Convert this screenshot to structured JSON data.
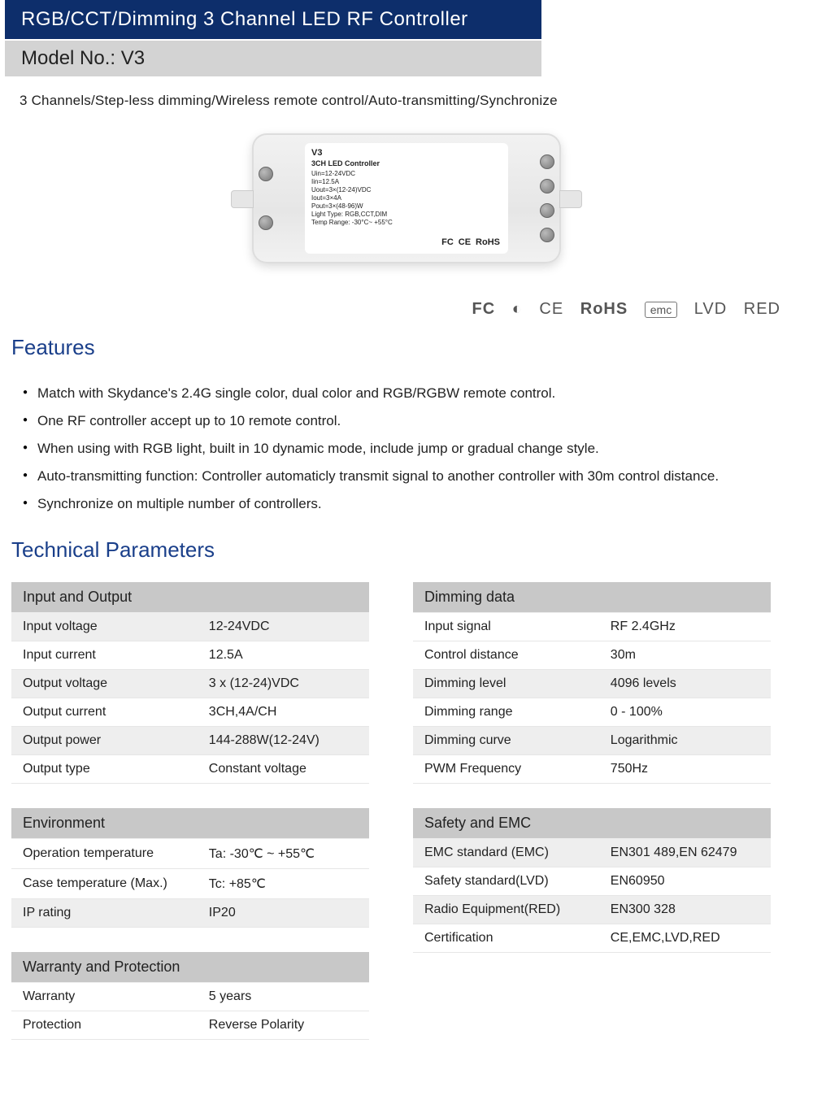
{
  "header": {
    "title": "RGB/CCT/Dimming 3 Channel LED RF Controller",
    "model": "Model No.: V3",
    "tagline": "3 Channels/Step-less dimming/Wireless remote control/Auto-transmitting/Synchronize"
  },
  "product_label": {
    "model": "V3",
    "subtitle": "3CH LED Controller",
    "l1": "Uin=12-24VDC",
    "l2": "Iin=12.5A",
    "l3": "Uout=3×(12-24)VDC",
    "l4": "Iout=3×4A",
    "l5": "Pout=3×(48-96)W",
    "l6": "Light Type: RGB,CCT,DIM",
    "l7": "Temp Range: -30°C~ +55°C",
    "rohs": "RoHS"
  },
  "certifications": {
    "c1": "FC",
    "c2": "◐",
    "c3": "CE",
    "c4": "RoHS",
    "c5": "emc",
    "c6": "LVD",
    "c7": "RED"
  },
  "features_heading": "Features",
  "features": [
    "Match with Skydance's 2.4G single color, dual color and RGB/RGBW remote control.",
    "One RF controller accept up to 10 remote control.",
    "When using with RGB light, built in 10 dynamic mode, include jump or gradual change style.",
    "Auto-transmitting function: Controller automaticly transmit signal to another controller with 30m control distance.",
    "Synchronize on multiple number of controllers."
  ],
  "tech_heading": "Technical Parameters",
  "t_io": {
    "title": "Input and Output",
    "rows": [
      [
        "Input voltage",
        "12-24VDC"
      ],
      [
        "Input current",
        "12.5A"
      ],
      [
        "Output voltage",
        "3 x (12-24)VDC"
      ],
      [
        "Output current",
        "3CH,4A/CH"
      ],
      [
        "Output power",
        "144-288W(12-24V)"
      ],
      [
        "Output type",
        "Constant voltage"
      ]
    ]
  },
  "t_dim": {
    "title": "Dimming data",
    "rows": [
      [
        "Input signal",
        "RF 2.4GHz"
      ],
      [
        "Control distance",
        "30m"
      ],
      [
        "Dimming level",
        "4096 levels"
      ],
      [
        "Dimming range",
        "0 - 100%"
      ],
      [
        "Dimming curve",
        "Logarithmic"
      ],
      [
        "PWM Frequency",
        "750Hz"
      ]
    ]
  },
  "t_env": {
    "title": "Environment",
    "rows": [
      [
        "Operation temperature",
        "Ta: -30℃ ~ +55℃"
      ],
      [
        "Case temperature (Max.)",
        "Tc: +85℃"
      ],
      [
        "IP rating",
        "IP20"
      ]
    ]
  },
  "t_safe": {
    "title": "Safety and EMC",
    "rows": [
      [
        "EMC standard (EMC)",
        "EN301 489,EN 62479"
      ],
      [
        "Safety standard(LVD)",
        "EN60950"
      ],
      [
        "Radio Equipment(RED)",
        "EN300 328"
      ],
      [
        "Certification",
        "CE,EMC,LVD,RED"
      ]
    ]
  },
  "t_warr": {
    "title": "Warranty and Protection",
    "rows": [
      [
        "Warranty",
        "5 years"
      ],
      [
        "Protection",
        "Reverse Polarity"
      ]
    ]
  }
}
